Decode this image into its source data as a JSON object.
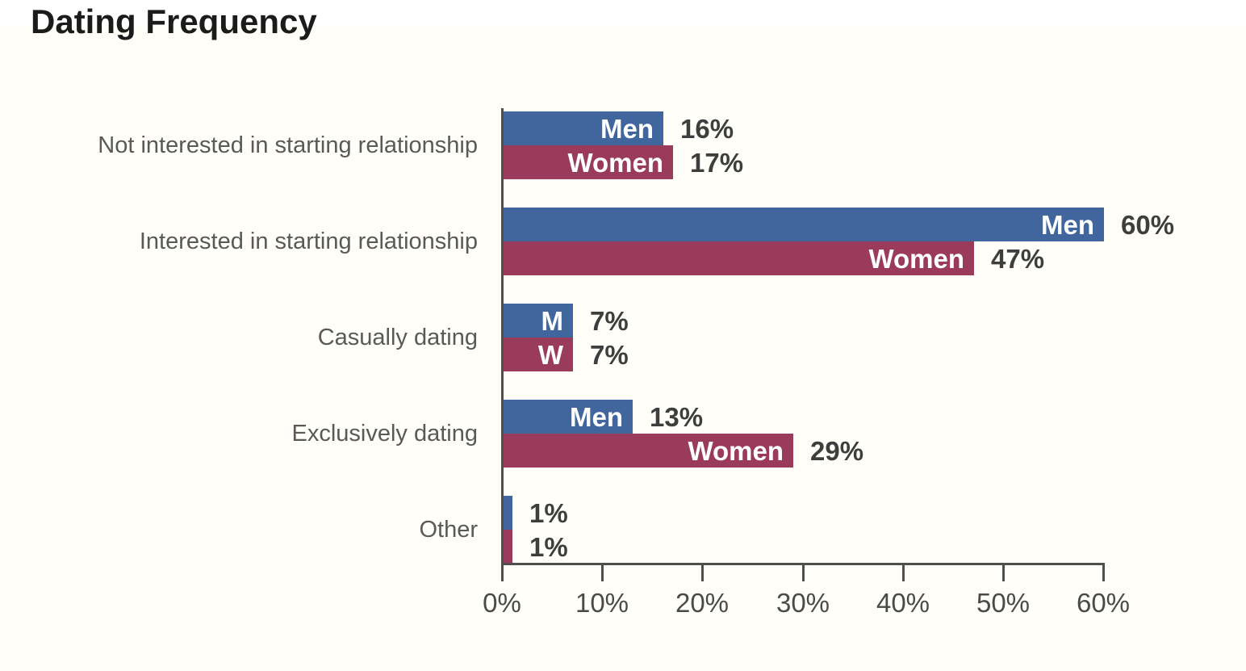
{
  "page": {
    "title": "Dating Frequency"
  },
  "colors": {
    "men_bar": "#41669e",
    "women_bar": "#9a3b5c",
    "value_label_text": "#3e3e3e",
    "category_label_text": "#595959",
    "axis": "#4f4f4f",
    "background": "#fffef8",
    "inbar_label_text": "#ffffff"
  },
  "chart_data": {
    "type": "bar",
    "orientation": "horizontal",
    "title": "Dating Frequency",
    "categories": [
      "Not interested in starting relationship",
      "Interested in starting relationship",
      "Casually dating",
      "Exclusively dating",
      "Other"
    ],
    "series": [
      {
        "name": "Men",
        "color": "#41669e",
        "values": [
          16,
          60,
          7,
          13,
          1
        ]
      },
      {
        "name": "Women",
        "color": "#9a3b5c",
        "values": [
          17,
          47,
          7,
          29,
          1
        ]
      }
    ],
    "bar_labels": [
      [
        "Men",
        "Women"
      ],
      [
        "Men",
        "Women"
      ],
      [
        "M",
        "W"
      ],
      [
        "Men",
        "Women"
      ],
      [
        "",
        ""
      ]
    ],
    "value_labels": [
      [
        "16%",
        "17%"
      ],
      [
        "60%",
        "47%"
      ],
      [
        "7%",
        "7%"
      ],
      [
        "13%",
        "29%"
      ],
      [
        "1%",
        "1%"
      ]
    ],
    "xlabel": "",
    "ylabel": "",
    "xlim": [
      0,
      60
    ],
    "x_ticks": [
      "0%",
      "10%",
      "20%",
      "30%",
      "40%",
      "50%",
      "60%"
    ],
    "x_tick_values": [
      0,
      10,
      20,
      30,
      40,
      50,
      60
    ],
    "grid": false,
    "legend_position": "labels-inside-bars"
  }
}
